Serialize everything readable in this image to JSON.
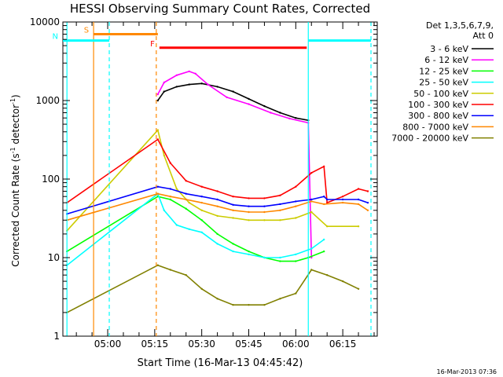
{
  "chart_data": {
    "type": "line",
    "title": "HESSI Observing Summary Count Rates, Corrected",
    "xlabel": "Start Time (16-Mar-13 04:45:42)",
    "ylabel": "Corrected Count Rate (s",
    "ylabel_sup": "-1",
    "ylabel_mid": " detector",
    "ylabel_sup2": "-1",
    "ylabel_end": ")",
    "ylog": true,
    "ylim": [
      1,
      10000
    ],
    "xlim": [
      "04:45:42",
      "06:26:00"
    ],
    "x_ticks": [
      "05:00",
      "05:15",
      "05:30",
      "05:45",
      "06:00",
      "06:15"
    ],
    "y_ticks": [
      "1",
      "10",
      "100",
      "1000",
      "10000"
    ],
    "legend_position": "right",
    "legend_header": [
      "Det 1,3,5,6,7,9,",
      "Att 0"
    ],
    "footer_date": "16-Mar-2013 07:36",
    "series": [
      {
        "name": "3 - 6 keV",
        "color": "#000000",
        "points": [
          [
            "05:16:00",
            1000
          ],
          [
            "05:18:00",
            1300
          ],
          [
            "05:22:00",
            1500
          ],
          [
            "05:26:00",
            1600
          ],
          [
            "05:30:00",
            1650
          ],
          [
            "05:35:00",
            1500
          ],
          [
            "05:40:00",
            1300
          ],
          [
            "05:45:00",
            1050
          ],
          [
            "05:50:00",
            850
          ],
          [
            "05:55:00",
            700
          ],
          [
            "06:00:00",
            600
          ],
          [
            "06:04:00",
            560
          ]
        ]
      },
      {
        "name": "6 - 12 keV",
        "color": "#ff00ff",
        "points": [
          [
            "05:16:00",
            1200
          ],
          [
            "05:18:00",
            1700
          ],
          [
            "05:22:00",
            2100
          ],
          [
            "05:26:00",
            2350
          ],
          [
            "05:28:00",
            2200
          ],
          [
            "05:32:00",
            1600
          ],
          [
            "05:38:00",
            1100
          ],
          [
            "05:45:00",
            900
          ],
          [
            "05:52:00",
            700
          ],
          [
            "05:58:00",
            590
          ],
          [
            "06:04:00",
            520
          ],
          [
            "06:05:00",
            10
          ]
        ]
      },
      {
        "name": "12 - 25 keV",
        "color": "#00ff00",
        "points": [
          [
            "04:47:00",
            12
          ],
          [
            "05:16:00",
            60
          ],
          [
            "05:20:00",
            55
          ],
          [
            "05:25:00",
            42
          ],
          [
            "05:30:00",
            30
          ],
          [
            "05:35:00",
            20
          ],
          [
            "05:40:00",
            15
          ],
          [
            "05:45:00",
            12
          ],
          [
            "05:50:00",
            10
          ],
          [
            "05:55:00",
            9
          ],
          [
            "06:00:00",
            9
          ],
          [
            "06:04:00",
            10
          ],
          [
            "06:09:00",
            12
          ]
        ]
      },
      {
        "name": "25 - 50 keV",
        "color": "#00ffff",
        "points": [
          [
            "04:47:00",
            8
          ],
          [
            "05:16:00",
            65
          ],
          [
            "05:18:00",
            40
          ],
          [
            "05:22:00",
            26
          ],
          [
            "05:26:00",
            23
          ],
          [
            "05:30:00",
            21
          ],
          [
            "05:35:00",
            15
          ],
          [
            "05:40:00",
            12
          ],
          [
            "05:45:00",
            11
          ],
          [
            "05:50:00",
            10
          ],
          [
            "05:55:00",
            10
          ],
          [
            "06:00:00",
            11
          ],
          [
            "06:05:00",
            13
          ],
          [
            "06:09:00",
            17
          ]
        ]
      },
      {
        "name": "50 - 100 keV",
        "color": "#cccc00",
        "points": [
          [
            "04:47:00",
            22
          ],
          [
            "05:16:00",
            420
          ],
          [
            "05:18:00",
            200
          ],
          [
            "05:22:00",
            75
          ],
          [
            "05:26:00",
            50
          ],
          [
            "05:30:00",
            40
          ],
          [
            "05:35:00",
            34
          ],
          [
            "05:40:00",
            32
          ],
          [
            "05:45:00",
            30
          ],
          [
            "05:50:00",
            30
          ],
          [
            "05:55:00",
            30
          ],
          [
            "06:00:00",
            32
          ],
          [
            "06:05:00",
            38
          ],
          [
            "06:10:00",
            25
          ],
          [
            "06:20:00",
            25
          ]
        ]
      },
      {
        "name": "100 - 300 keV",
        "color": "#ff0000",
        "points": [
          [
            "04:47:00",
            50
          ],
          [
            "05:16:00",
            320
          ],
          [
            "05:20:00",
            160
          ],
          [
            "05:25:00",
            95
          ],
          [
            "05:30:00",
            80
          ],
          [
            "05:35:00",
            70
          ],
          [
            "05:40:00",
            60
          ],
          [
            "05:45:00",
            57
          ],
          [
            "05:50:00",
            57
          ],
          [
            "05:55:00",
            62
          ],
          [
            "06:00:00",
            80
          ],
          [
            "06:05:00",
            120
          ],
          [
            "06:09:00",
            145
          ],
          [
            "06:10:00",
            50
          ],
          [
            "06:15:00",
            60
          ],
          [
            "06:20:00",
            75
          ],
          [
            "06:23:00",
            70
          ]
        ]
      },
      {
        "name": "300 - 800 keV",
        "color": "#0000ff",
        "points": [
          [
            "04:47:00",
            36
          ],
          [
            "05:16:00",
            80
          ],
          [
            "05:20:00",
            75
          ],
          [
            "05:25:00",
            65
          ],
          [
            "05:30:00",
            60
          ],
          [
            "05:35:00",
            55
          ],
          [
            "05:40:00",
            47
          ],
          [
            "05:45:00",
            45
          ],
          [
            "05:50:00",
            45
          ],
          [
            "05:55:00",
            48
          ],
          [
            "06:00:00",
            52
          ],
          [
            "06:05:00",
            55
          ],
          [
            "06:09:00",
            60
          ],
          [
            "06:10:00",
            55
          ],
          [
            "06:15:00",
            55
          ],
          [
            "06:20:00",
            55
          ],
          [
            "06:23:00",
            50
          ]
        ]
      },
      {
        "name": "800 - 7000 keV",
        "color": "#ff8800",
        "points": [
          [
            "04:47:00",
            30
          ],
          [
            "05:16:00",
            65
          ],
          [
            "05:20:00",
            60
          ],
          [
            "05:25:00",
            55
          ],
          [
            "05:30:00",
            50
          ],
          [
            "05:35:00",
            45
          ],
          [
            "05:40:00",
            40
          ],
          [
            "05:45:00",
            38
          ],
          [
            "05:50:00",
            38
          ],
          [
            "05:55:00",
            40
          ],
          [
            "06:00:00",
            45
          ],
          [
            "06:05:00",
            52
          ],
          [
            "06:09:00",
            48
          ],
          [
            "06:15:00",
            50
          ],
          [
            "06:20:00",
            48
          ],
          [
            "06:23:00",
            40
          ]
        ]
      },
      {
        "name": "7000 - 20000 keV",
        "color": "#808000",
        "points": [
          [
            "04:47:00",
            2
          ],
          [
            "05:16:00",
            8
          ],
          [
            "05:20:00",
            7
          ],
          [
            "05:25:00",
            6
          ],
          [
            "05:30:00",
            4
          ],
          [
            "05:35:00",
            3
          ],
          [
            "05:40:00",
            2.5
          ],
          [
            "05:45:00",
            2.5
          ],
          [
            "05:50:00",
            2.5
          ],
          [
            "05:55:00",
            3
          ],
          [
            "06:00:00",
            3.5
          ],
          [
            "06:05:00",
            7
          ],
          [
            "06:10:00",
            6
          ],
          [
            "06:15:00",
            5
          ],
          [
            "06:20:00",
            4
          ]
        ]
      }
    ],
    "annotations": [
      {
        "label": "S",
        "color": "#ff8800",
        "start": "04:55:30",
        "end": "05:16:00",
        "level": 7000
      },
      {
        "label": "N",
        "color": "#00ffff",
        "start": "04:45:42",
        "end": "05:00:30",
        "level": 5800
      },
      {
        "label": "F",
        "color": "#ff0000",
        "start": "05:16:30",
        "end": "06:03:30",
        "level": 4700
      },
      {
        "label": "",
        "color": "#00ffff",
        "start": "06:04:00",
        "end": "06:24:00",
        "level": 5800
      }
    ],
    "vertical_markers": [
      {
        "time": "04:47:00",
        "color": "#00ffff",
        "style": "solid"
      },
      {
        "time": "04:55:30",
        "color": "#ff8800",
        "style": "solid"
      },
      {
        "time": "05:00:30",
        "color": "#00ffff",
        "style": "dashed"
      },
      {
        "time": "05:15:30",
        "color": "#ff8800",
        "style": "dashed"
      },
      {
        "time": "06:04:00",
        "color": "#00ffff",
        "style": "solid"
      },
      {
        "time": "06:24:00",
        "color": "#00ffff",
        "style": "dashed"
      }
    ]
  }
}
